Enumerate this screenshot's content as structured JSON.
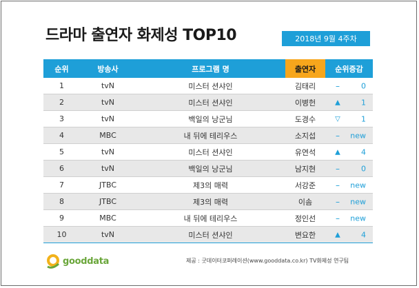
{
  "title": "드라마 출연자 화제성 TOP10",
  "date": "2018년 9월 4주차",
  "columns": [
    "순위",
    "방송사",
    "프로그램 명",
    "출연자",
    "순위증감"
  ],
  "rows": [
    {
      "rank": "1",
      "channel": "tvN",
      "program": "미스터 션샤인",
      "actor": "김태리",
      "mark": "–",
      "change": "0"
    },
    {
      "rank": "2",
      "channel": "tvN",
      "program": "미스터 션샤인",
      "actor": "이병헌",
      "mark": "▲",
      "change": "1"
    },
    {
      "rank": "3",
      "channel": "tvN",
      "program": "백일의 낭군님",
      "actor": "도경수",
      "mark": "▽",
      "change": "1"
    },
    {
      "rank": "4",
      "channel": "MBC",
      "program": "내 뒤에 테리우스",
      "actor": "소지섭",
      "mark": "–",
      "change": "new"
    },
    {
      "rank": "5",
      "channel": "tvN",
      "program": "미스터 션샤인",
      "actor": "유연석",
      "mark": "▲",
      "change": "4"
    },
    {
      "rank": "6",
      "channel": "tvN",
      "program": "백일의 낭군님",
      "actor": "남지현",
      "mark": "–",
      "change": "0"
    },
    {
      "rank": "7",
      "channel": "JTBC",
      "program": "제3의 매력",
      "actor": "서강준",
      "mark": "–",
      "change": "new"
    },
    {
      "rank": "8",
      "channel": "JTBC",
      "program": "제3의 매력",
      "actor": "이솜",
      "mark": "–",
      "change": "new"
    },
    {
      "rank": "9",
      "channel": "MBC",
      "program": "내 뒤에 테리우스",
      "actor": "정인선",
      "mark": "–",
      "change": "new"
    },
    {
      "rank": "10",
      "channel": "tvN",
      "program": "미스터 션샤인",
      "actor": "변요한",
      "mark": "▲",
      "change": "4"
    }
  ],
  "logo": {
    "text": "gooddata"
  },
  "source": "제공 : 굿데이터코퍼레이션(www.gooddata.co.kr)  TV화제성  연구팀",
  "colors": {
    "header_blue": "#1e9fd8",
    "header_orange": "#f7a61c",
    "alt_row": "#e8e8e8"
  }
}
